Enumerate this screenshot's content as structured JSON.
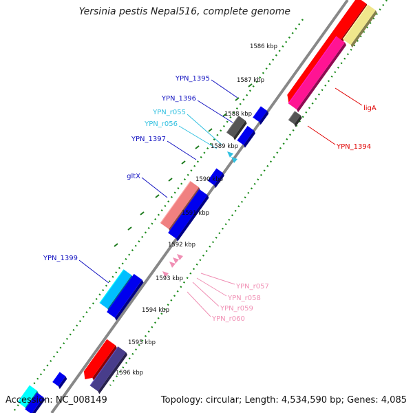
{
  "title": "Yersinia pestis Nepal516, complete genome",
  "footer": {
    "accession": "Accession: NC_008149",
    "summary": "Topology: circular; Length: 4,534,590 bp; Genes: 4,085"
  },
  "colors": {
    "backbone": "#888888",
    "tick_dots": "#1a8a1a",
    "ticks": "#1b7a1b",
    "blue_label": "#1010c0",
    "cyan_label": "#30c0e0",
    "red_label": "#e00000",
    "pink_label": "#f08fb4"
  },
  "kbp_ticks": [
    "1586 kbp",
    "1587 kbp",
    "1588 kbp",
    "1589 kbp",
    "1590 kbp",
    "1591 kbp",
    "1592 kbp",
    "1593 kbp",
    "1594 kbp",
    "1595 kbp",
    "1596 kbp"
  ],
  "gene_labels": [
    {
      "text": "YPN_1395",
      "color": "#1010c0"
    },
    {
      "text": "YPN_1396",
      "color": "#1010c0"
    },
    {
      "text": "YPN_r055",
      "color": "#30c0e0"
    },
    {
      "text": "YPN_r056",
      "color": "#30c0e0"
    },
    {
      "text": "YPN_1397",
      "color": "#1010c0"
    },
    {
      "text": "gltX",
      "color": "#1010c0"
    },
    {
      "text": "YPN_1399",
      "color": "#1010c0"
    },
    {
      "text": "ligA",
      "color": "#e00000"
    },
    {
      "text": "YPN_1394",
      "color": "#e00000"
    },
    {
      "text": "YPN_r057",
      "color": "#f08fb4"
    },
    {
      "text": "YPN_r058",
      "color": "#f08fb4"
    },
    {
      "text": "YPN_r059",
      "color": "#f08fb4"
    },
    {
      "text": "YPN_r060",
      "color": "#f08fb4"
    }
  ],
  "features": [
    {
      "name": "gene-red-top",
      "color": "#ff0000"
    },
    {
      "name": "gene-yellow-top",
      "color": "#f0e68c"
    },
    {
      "name": "gene-pink-ligA",
      "color": "#ff1493"
    },
    {
      "name": "gene-gray-ypn1394",
      "color": "#555555"
    },
    {
      "name": "gene-blue-ypn1395",
      "color": "#0000ee"
    },
    {
      "name": "gene-gray-ypn1396",
      "color": "#555555"
    },
    {
      "name": "gene-blue-b",
      "color": "#0000ee"
    },
    {
      "name": "gene-blue-ypn1397",
      "color": "#0000ee"
    },
    {
      "name": "gene-salmon-gltx",
      "color": "#f08080"
    },
    {
      "name": "gene-blue-gltx",
      "color": "#0000ee"
    },
    {
      "name": "gene-cyan-ypn1399",
      "color": "#00bfff"
    },
    {
      "name": "gene-blue-ypn1399",
      "color": "#0000ee"
    },
    {
      "name": "gene-red-bottom",
      "color": "#ff0000"
    },
    {
      "name": "gene-purple-bottom",
      "color": "#483d8b"
    },
    {
      "name": "gene-blue-small-bottom",
      "color": "#0000ee"
    },
    {
      "name": "gene-cyan-corner",
      "color": "#00ffff"
    },
    {
      "name": "gene-blue-corner",
      "color": "#0000ee"
    },
    {
      "name": "rna-cyan-r055",
      "color": "#30c0e0"
    },
    {
      "name": "rna-cyan-r056",
      "color": "#30c0e0"
    },
    {
      "name": "rna-pink-r057",
      "color": "#f08fb4"
    },
    {
      "name": "rna-pink-r058",
      "color": "#f08fb4"
    },
    {
      "name": "rna-pink-r059",
      "color": "#f08fb4"
    },
    {
      "name": "rna-pink-r060",
      "color": "#f08fb4"
    }
  ]
}
